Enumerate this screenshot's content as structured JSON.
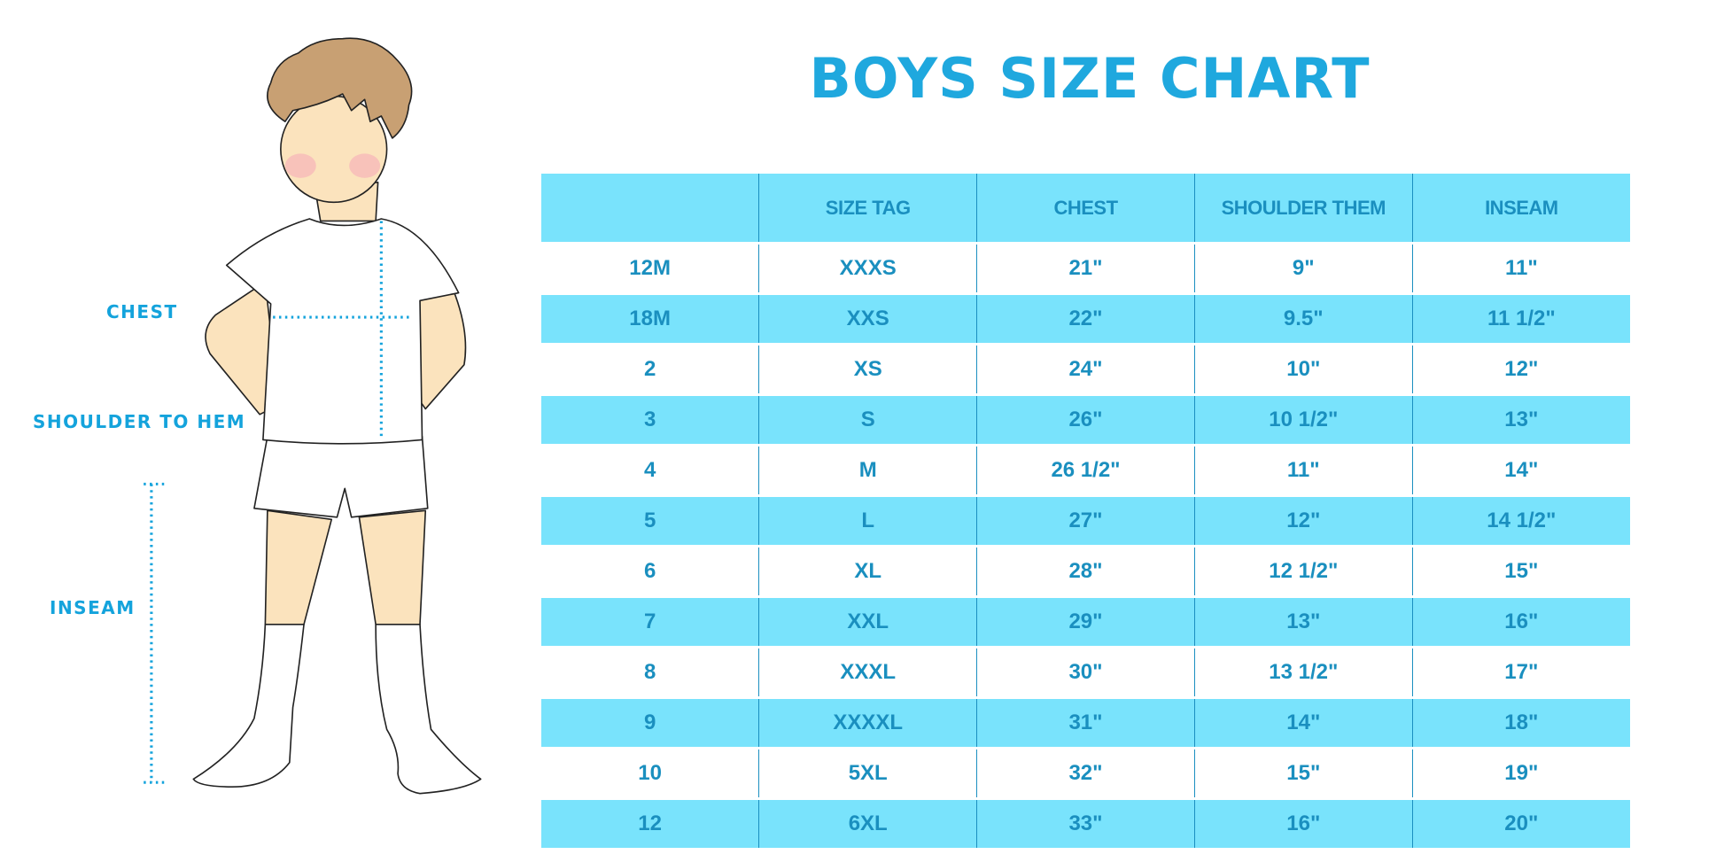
{
  "title": "BOYS SIZE CHART",
  "figure_labels": {
    "chest": "CHEST",
    "shoulder_to_hem": "SHOULDER TO HEM",
    "inseam": "INSEAM"
  },
  "colors": {
    "accent": "#1fa8de",
    "row_fill": "#79e3fc",
    "text": "#1a8fbf"
  },
  "table": {
    "headers": [
      "",
      "SIZE TAG",
      "CHEST",
      "SHOULDER THEM",
      "INSEAM"
    ],
    "rows": [
      [
        "12M",
        "XXXS",
        "21\"",
        "9\"",
        "11\""
      ],
      [
        "18M",
        "XXS",
        "22\"",
        "9.5\"",
        "11 1/2\""
      ],
      [
        "2",
        "XS",
        "24\"",
        "10\"",
        "12\""
      ],
      [
        "3",
        "S",
        "26\"",
        "10 1/2\"",
        "13\""
      ],
      [
        "4",
        "M",
        "26 1/2\"",
        "11\"",
        "14\""
      ],
      [
        "5",
        "L",
        "27\"",
        "12\"",
        "14 1/2\""
      ],
      [
        "6",
        "XL",
        "28\"",
        "12 1/2\"",
        "15\""
      ],
      [
        "7",
        "XXL",
        "29\"",
        "13\"",
        "16\""
      ],
      [
        "8",
        "XXXL",
        "30\"",
        "13 1/2\"",
        "17\""
      ],
      [
        "9",
        "XXXXL",
        "31\"",
        "14\"",
        "18\""
      ],
      [
        "10",
        "5XL",
        "32\"",
        "15\"",
        "19\""
      ],
      [
        "12",
        "6XL",
        "33\"",
        "16\"",
        "20\""
      ]
    ]
  }
}
